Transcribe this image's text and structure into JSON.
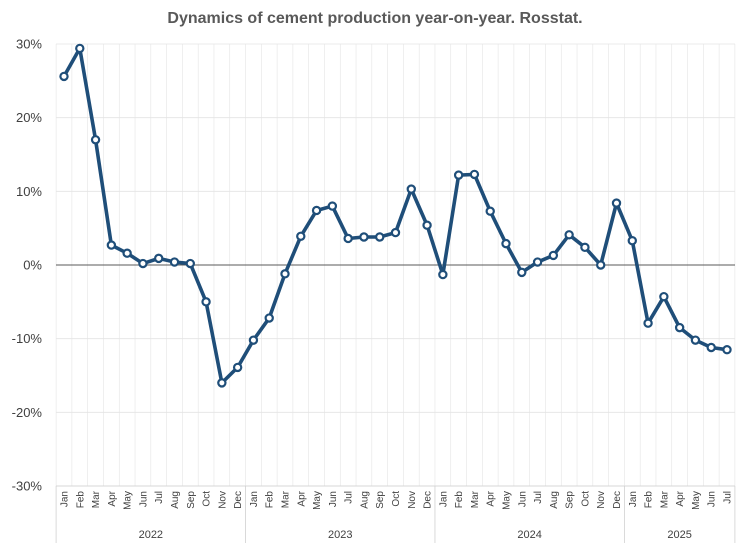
{
  "chart_data": {
    "type": "line",
    "title": "Dynamics of cement production year-on-year. Rosstat.",
    "ylim": [
      -30,
      30
    ],
    "yticks": [
      {
        "value": 30,
        "label": "30%"
      },
      {
        "value": 20,
        "label": "20%"
      },
      {
        "value": 10,
        "label": "10%"
      },
      {
        "value": 0,
        "label": "0%"
      },
      {
        "value": -10,
        "label": "-10%"
      },
      {
        "value": -20,
        "label": "-20%"
      },
      {
        "value": -30,
        "label": "-30%"
      }
    ],
    "categories": [
      "Jan",
      "Feb",
      "Mar",
      "Apr",
      "May",
      "Jun",
      "Jul",
      "Aug",
      "Sep",
      "Oct",
      "Nov",
      "Dec",
      "Jan",
      "Feb",
      "Mar",
      "Apr",
      "May",
      "Jun",
      "Jul",
      "Aug",
      "Sep",
      "Oct",
      "Nov",
      "Dec",
      "Jan",
      "Feb",
      "Mar",
      "Apr",
      "May",
      "Jun",
      "Jul",
      "Aug",
      "Sep",
      "Oct",
      "Nov",
      "Dec",
      "Jan",
      "Feb",
      "Mar",
      "Apr",
      "May",
      "Jun",
      "Jul"
    ],
    "years": [
      {
        "label": "2022",
        "start": 0,
        "count": 12
      },
      {
        "label": "2023",
        "start": 12,
        "count": 12
      },
      {
        "label": "2024",
        "start": 24,
        "count": 12
      },
      {
        "label": "2025",
        "start": 36,
        "count": 7
      }
    ],
    "values": [
      25.6,
      29.4,
      17.0,
      2.7,
      1.6,
      0.2,
      0.9,
      0.4,
      0.2,
      -5.0,
      -16.0,
      -13.9,
      -10.2,
      -7.2,
      -1.2,
      3.9,
      7.4,
      8.0,
      3.6,
      3.8,
      3.8,
      4.4,
      10.3,
      5.4,
      -1.3,
      12.2,
      12.3,
      7.3,
      2.9,
      -1.0,
      0.4,
      1.3,
      4.1,
      2.4,
      0.0,
      8.4,
      3.3,
      -7.9,
      -4.3,
      -8.5,
      -10.2,
      -11.2,
      -11.5
    ],
    "grid": true,
    "colors": {
      "line": "#1f4e79",
      "marker_fill": "#ffffff",
      "gridline": "#e4e4e4",
      "zero_line": "#595959"
    }
  }
}
